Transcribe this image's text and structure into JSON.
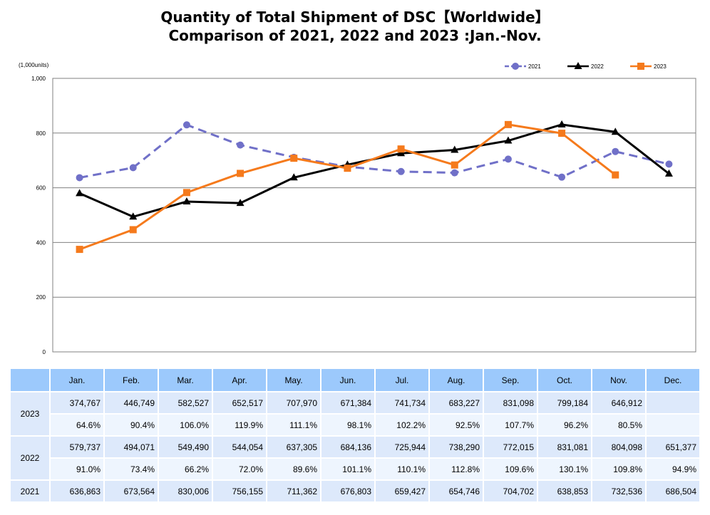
{
  "chart_data": {
    "type": "line",
    "title": "Quantity of Total Shipment of DSC【Worldwide】",
    "subtitle": "Comparison of 2021, 2022 and 2023 :Jan.-Nov.",
    "ylabel": "(1,000units)",
    "ylim": [
      0,
      1000
    ],
    "yticks": [
      "0",
      "200",
      "400",
      "600",
      "800",
      "1,000"
    ],
    "grid": true,
    "legend": "top-right",
    "categories": [
      "Jan.",
      "Feb.",
      "Mar.",
      "Apr.",
      "May.",
      "Jun.",
      "Jul.",
      "Aug.",
      "Sep.",
      "Oct.",
      "Nov.",
      "Dec."
    ],
    "series": [
      {
        "name": "2021",
        "color": "#7070c8",
        "dash": true,
        "marker": "circle",
        "values": [
          636.863,
          673.564,
          830.006,
          756.155,
          711.362,
          676.803,
          659.427,
          654.746,
          704.702,
          638.853,
          732.536,
          686.504
        ]
      },
      {
        "name": "2022",
        "color": "#000000",
        "dash": false,
        "marker": "triangle",
        "values": [
          579.737,
          494.071,
          549.49,
          544.054,
          637.305,
          684.136,
          725.944,
          738.29,
          772.015,
          831.081,
          804.098,
          651.377
        ]
      },
      {
        "name": "2023",
        "color": "#f57a1c",
        "dash": false,
        "marker": "square",
        "values": [
          374.767,
          446.749,
          582.527,
          652.517,
          707.97,
          671.384,
          741.734,
          683.227,
          831.098,
          799.184,
          646.912,
          null
        ]
      }
    ]
  },
  "table": {
    "months": [
      "Jan.",
      "Feb.",
      "Mar.",
      "Apr.",
      "May.",
      "Jun.",
      "Jul.",
      "Aug.",
      "Sep.",
      "Oct.",
      "Nov.",
      "Dec."
    ],
    "rows": [
      {
        "year": "2023",
        "units": [
          "374,767",
          "446,749",
          "582,527",
          "652,517",
          "707,970",
          "671,384",
          "741,734",
          "683,227",
          "831,098",
          "799,184",
          "646,912",
          ""
        ],
        "pct": [
          "64.6%",
          "90.4%",
          "106.0%",
          "119.9%",
          "111.1%",
          "98.1%",
          "102.2%",
          "92.5%",
          "107.7%",
          "96.2%",
          "80.5%",
          ""
        ]
      },
      {
        "year": "2022",
        "units": [
          "579,737",
          "494,071",
          "549,490",
          "544,054",
          "637,305",
          "684,136",
          "725,944",
          "738,290",
          "772,015",
          "831,081",
          "804,098",
          "651,377"
        ],
        "pct": [
          "91.0%",
          "73.4%",
          "66.2%",
          "72.0%",
          "89.6%",
          "101.1%",
          "110.1%",
          "112.8%",
          "109.6%",
          "130.1%",
          "109.8%",
          "94.9%"
        ]
      },
      {
        "year": "2021",
        "units": [
          "636,863",
          "673,564",
          "830,006",
          "756,155",
          "711,362",
          "676,803",
          "659,427",
          "654,746",
          "704,702",
          "638,853",
          "732,536",
          "686,504"
        ]
      }
    ]
  }
}
